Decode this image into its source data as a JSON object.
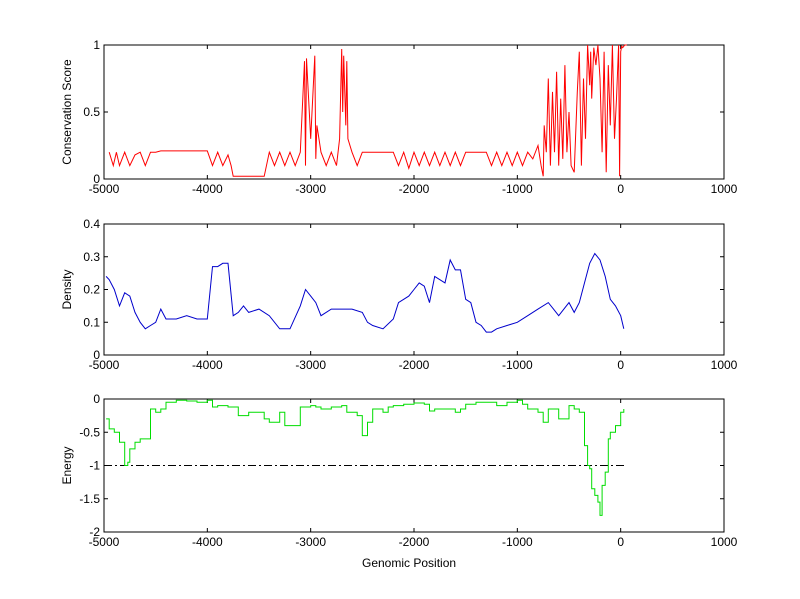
{
  "figure": {
    "xlabel": "Genomic Position"
  },
  "colors": {
    "conservation": "#ff0000",
    "density": "#0000cc",
    "energy": "#00dd00",
    "axis": "#000000",
    "threshold": "#000000"
  },
  "chart_data": [
    {
      "type": "line",
      "ylabel": "Conservation Score",
      "xlim": [
        -5000,
        1000
      ],
      "ylim": [
        0,
        1
      ],
      "xticks": [
        -5000,
        -4000,
        -3000,
        -2000,
        -1000,
        0,
        1000
      ],
      "xtick_labels": [
        "-5000",
        "-4000",
        "-3000",
        "-2000",
        "-1000",
        "0",
        "1000"
      ],
      "yticks": [
        0,
        0.5,
        1
      ],
      "ytick_labels": [
        "0",
        "0.5",
        "1"
      ],
      "grid": false,
      "series": [
        {
          "color": "#ff0000",
          "x": [
            -4950,
            -4910,
            -4880,
            -4850,
            -4800,
            -4750,
            -4700,
            -4650,
            -4600,
            -4550,
            -4500,
            -4450,
            -4300,
            -4150,
            -4000,
            -3950,
            -3900,
            -3850,
            -3800,
            -3770,
            -3750,
            -3600,
            -3450,
            -3400,
            -3350,
            -3300,
            -3250,
            -3200,
            -3150,
            -3100,
            -3060,
            -3050,
            -3040,
            -3000,
            -2960,
            -2950,
            -2940,
            -2900,
            -2850,
            -2800,
            -2750,
            -2720,
            -2700,
            -2690,
            -2680,
            -2660,
            -2650,
            -2640,
            -2600,
            -2550,
            -2500,
            -2450,
            -2400,
            -2300,
            -2200,
            -2150,
            -2100,
            -2050,
            -2000,
            -1950,
            -1900,
            -1850,
            -1800,
            -1750,
            -1700,
            -1650,
            -1600,
            -1550,
            -1500,
            -1450,
            -1400,
            -1300,
            -1250,
            -1200,
            -1150,
            -1100,
            -1050,
            -1000,
            -950,
            -900,
            -850,
            -800,
            -770,
            -750,
            -740,
            -730,
            -720,
            -700,
            -680,
            -660,
            -640,
            -620,
            -600,
            -580,
            -560,
            -540,
            -520,
            -500,
            -480,
            -450,
            -420,
            -400,
            -380,
            -360,
            -340,
            -320,
            -300,
            -290,
            -280,
            -260,
            -240,
            -220,
            -200,
            -180,
            -160,
            -140,
            -120,
            -100,
            -80,
            -60,
            -40,
            -20,
            -10,
            0,
            10,
            20,
            40,
            60
          ],
          "y": [
            0.2,
            0.1,
            0.2,
            0.1,
            0.2,
            0.1,
            0.18,
            0.2,
            0.1,
            0.2,
            0.2,
            0.21,
            0.21,
            0.21,
            0.21,
            0.1,
            0.2,
            0.1,
            0.18,
            0.1,
            0.02,
            0.02,
            0.02,
            0.2,
            0.1,
            0.2,
            0.1,
            0.2,
            0.1,
            0.2,
            0.88,
            0.1,
            0.9,
            0.3,
            0.92,
            0.15,
            0.4,
            0.2,
            0.1,
            0.2,
            0.1,
            0.3,
            0.97,
            0.5,
            0.92,
            0.4,
            0.88,
            0.3,
            0.2,
            0.1,
            0.2,
            0.2,
            0.2,
            0.2,
            0.2,
            0.1,
            0.2,
            0.08,
            0.2,
            0.1,
            0.2,
            0.1,
            0.2,
            0.1,
            0.2,
            0.1,
            0.2,
            0.1,
            0.2,
            0.2,
            0.2,
            0.2,
            0.1,
            0.2,
            0.1,
            0.2,
            0.1,
            0.2,
            0.1,
            0.2,
            0.15,
            0.25,
            0.1,
            0.02,
            0.4,
            0.3,
            0.2,
            0.75,
            0.1,
            0.65,
            0.2,
            0.8,
            0.1,
            0.6,
            0.15,
            0.85,
            0.2,
            0.5,
            0.1,
            0.05,
            0.65,
            0.95,
            0.1,
            0.75,
            0.3,
            1.0,
            0.7,
            0.95,
            0.6,
            0.98,
            0.85,
            1.0,
            0.75,
            0.2,
            0.95,
            0.05,
            0.85,
            0.4,
            1.0,
            0.3,
            0.6,
            1.0,
            0.02,
            0.95,
            0.99,
            0.98,
            1.0,
            1.0
          ]
        }
      ]
    },
    {
      "type": "line",
      "ylabel": "Density",
      "xlim": [
        -5000,
        1000
      ],
      "ylim": [
        0,
        0.4
      ],
      "xticks": [
        -5000,
        -4000,
        -3000,
        -2000,
        -1000,
        0,
        1000
      ],
      "xtick_labels": [
        "-5000",
        "-4000",
        "-3000",
        "-2000",
        "-1000",
        "0",
        "1000"
      ],
      "yticks": [
        0,
        0.1,
        0.2,
        0.3,
        0.4
      ],
      "ytick_labels": [
        "0",
        "0.1",
        "0.2",
        "0.3",
        "0.4"
      ],
      "grid": false,
      "series": [
        {
          "color": "#0000cc",
          "x": [
            -4980,
            -4950,
            -4900,
            -4850,
            -4800,
            -4750,
            -4700,
            -4650,
            -4600,
            -4550,
            -4500,
            -4450,
            -4400,
            -4300,
            -4200,
            -4100,
            -4000,
            -3950,
            -3900,
            -3850,
            -3800,
            -3750,
            -3700,
            -3650,
            -3600,
            -3500,
            -3400,
            -3300,
            -3200,
            -3100,
            -3050,
            -3000,
            -2950,
            -2900,
            -2800,
            -2700,
            -2600,
            -2500,
            -2450,
            -2400,
            -2300,
            -2200,
            -2150,
            -2100,
            -2050,
            -2000,
            -1950,
            -1900,
            -1850,
            -1800,
            -1700,
            -1650,
            -1600,
            -1550,
            -1500,
            -1450,
            -1400,
            -1350,
            -1300,
            -1250,
            -1200,
            -1100,
            -1000,
            -900,
            -800,
            -700,
            -650,
            -600,
            -500,
            -450,
            -400,
            -350,
            -300,
            -250,
            -200,
            -150,
            -100,
            -50,
            0,
            30
          ],
          "y": [
            0.24,
            0.23,
            0.2,
            0.15,
            0.19,
            0.18,
            0.13,
            0.1,
            0.08,
            0.09,
            0.1,
            0.14,
            0.11,
            0.11,
            0.12,
            0.11,
            0.11,
            0.27,
            0.27,
            0.28,
            0.28,
            0.12,
            0.13,
            0.15,
            0.13,
            0.14,
            0.12,
            0.08,
            0.08,
            0.15,
            0.2,
            0.18,
            0.16,
            0.12,
            0.14,
            0.14,
            0.14,
            0.13,
            0.1,
            0.09,
            0.08,
            0.11,
            0.16,
            0.17,
            0.18,
            0.2,
            0.22,
            0.21,
            0.16,
            0.24,
            0.22,
            0.29,
            0.26,
            0.26,
            0.17,
            0.16,
            0.1,
            0.09,
            0.07,
            0.07,
            0.08,
            0.09,
            0.1,
            0.12,
            0.14,
            0.16,
            0.14,
            0.12,
            0.16,
            0.13,
            0.16,
            0.22,
            0.28,
            0.31,
            0.29,
            0.24,
            0.17,
            0.15,
            0.12,
            0.08
          ]
        }
      ]
    },
    {
      "type": "line",
      "ylabel": "Energy",
      "xlabel": "Genomic Position",
      "xlim": [
        -5000,
        1000
      ],
      "ylim": [
        -2,
        0
      ],
      "xticks": [
        -5000,
        -4000,
        -3000,
        -2000,
        -1000,
        0,
        1000
      ],
      "xtick_labels": [
        "-5000",
        "-4000",
        "-3000",
        "-2000",
        "-1000",
        "0",
        "1000"
      ],
      "yticks": [
        -2,
        -1.5,
        -1,
        -0.5,
        0
      ],
      "ytick_labels": [
        "-2",
        "-1.5",
        "-1",
        "-0.5",
        "0"
      ],
      "grid": false,
      "threshold": {
        "y": -1,
        "style": "dash-dot",
        "x_range": [
          -5000,
          50
        ]
      },
      "series": [
        {
          "color": "#00dd00",
          "x": [
            -4980,
            -4950,
            -4900,
            -4850,
            -4800,
            -4770,
            -4750,
            -4700,
            -4650,
            -4600,
            -4550,
            -4500,
            -4450,
            -4400,
            -4300,
            -4200,
            -4100,
            -4000,
            -3950,
            -3900,
            -3850,
            -3800,
            -3700,
            -3650,
            -3600,
            -3500,
            -3450,
            -3400,
            -3300,
            -3250,
            -3200,
            -3100,
            -3000,
            -2950,
            -2900,
            -2850,
            -2800,
            -2700,
            -2650,
            -2600,
            -2550,
            -2500,
            -2450,
            -2400,
            -2350,
            -2300,
            -2250,
            -2200,
            -2100,
            -2000,
            -1900,
            -1850,
            -1800,
            -1700,
            -1600,
            -1550,
            -1500,
            -1400,
            -1300,
            -1200,
            -1100,
            -1000,
            -950,
            -900,
            -800,
            -750,
            -700,
            -600,
            -500,
            -450,
            -400,
            -350,
            -320,
            -300,
            -280,
            -250,
            -220,
            -200,
            -180,
            -150,
            -120,
            -100,
            -50,
            0,
            30
          ],
          "y": [
            -0.3,
            -0.45,
            -0.5,
            -0.65,
            -1.0,
            -0.95,
            -0.75,
            -0.65,
            -0.6,
            -0.6,
            -0.15,
            -0.2,
            -0.15,
            -0.05,
            -0.02,
            -0.03,
            -0.05,
            -0.02,
            -0.12,
            -0.1,
            -0.1,
            -0.12,
            -0.25,
            -0.25,
            -0.2,
            -0.2,
            -0.3,
            -0.35,
            -0.2,
            -0.4,
            -0.4,
            -0.12,
            -0.1,
            -0.12,
            -0.15,
            -0.15,
            -0.12,
            -0.1,
            -0.2,
            -0.2,
            -0.25,
            -0.55,
            -0.35,
            -0.15,
            -0.15,
            -0.2,
            -0.12,
            -0.1,
            -0.08,
            -0.06,
            -0.08,
            -0.18,
            -0.15,
            -0.15,
            -0.2,
            -0.15,
            -0.08,
            -0.05,
            -0.05,
            -0.1,
            -0.05,
            -0.02,
            -0.08,
            -0.15,
            -0.2,
            -0.35,
            -0.15,
            -0.3,
            -0.1,
            -0.15,
            -0.2,
            -0.7,
            -1.0,
            -1.05,
            -1.35,
            -1.45,
            -1.55,
            -1.75,
            -1.3,
            -1.1,
            -0.6,
            -0.5,
            -0.4,
            -0.2,
            -0.15
          ]
        }
      ]
    }
  ]
}
